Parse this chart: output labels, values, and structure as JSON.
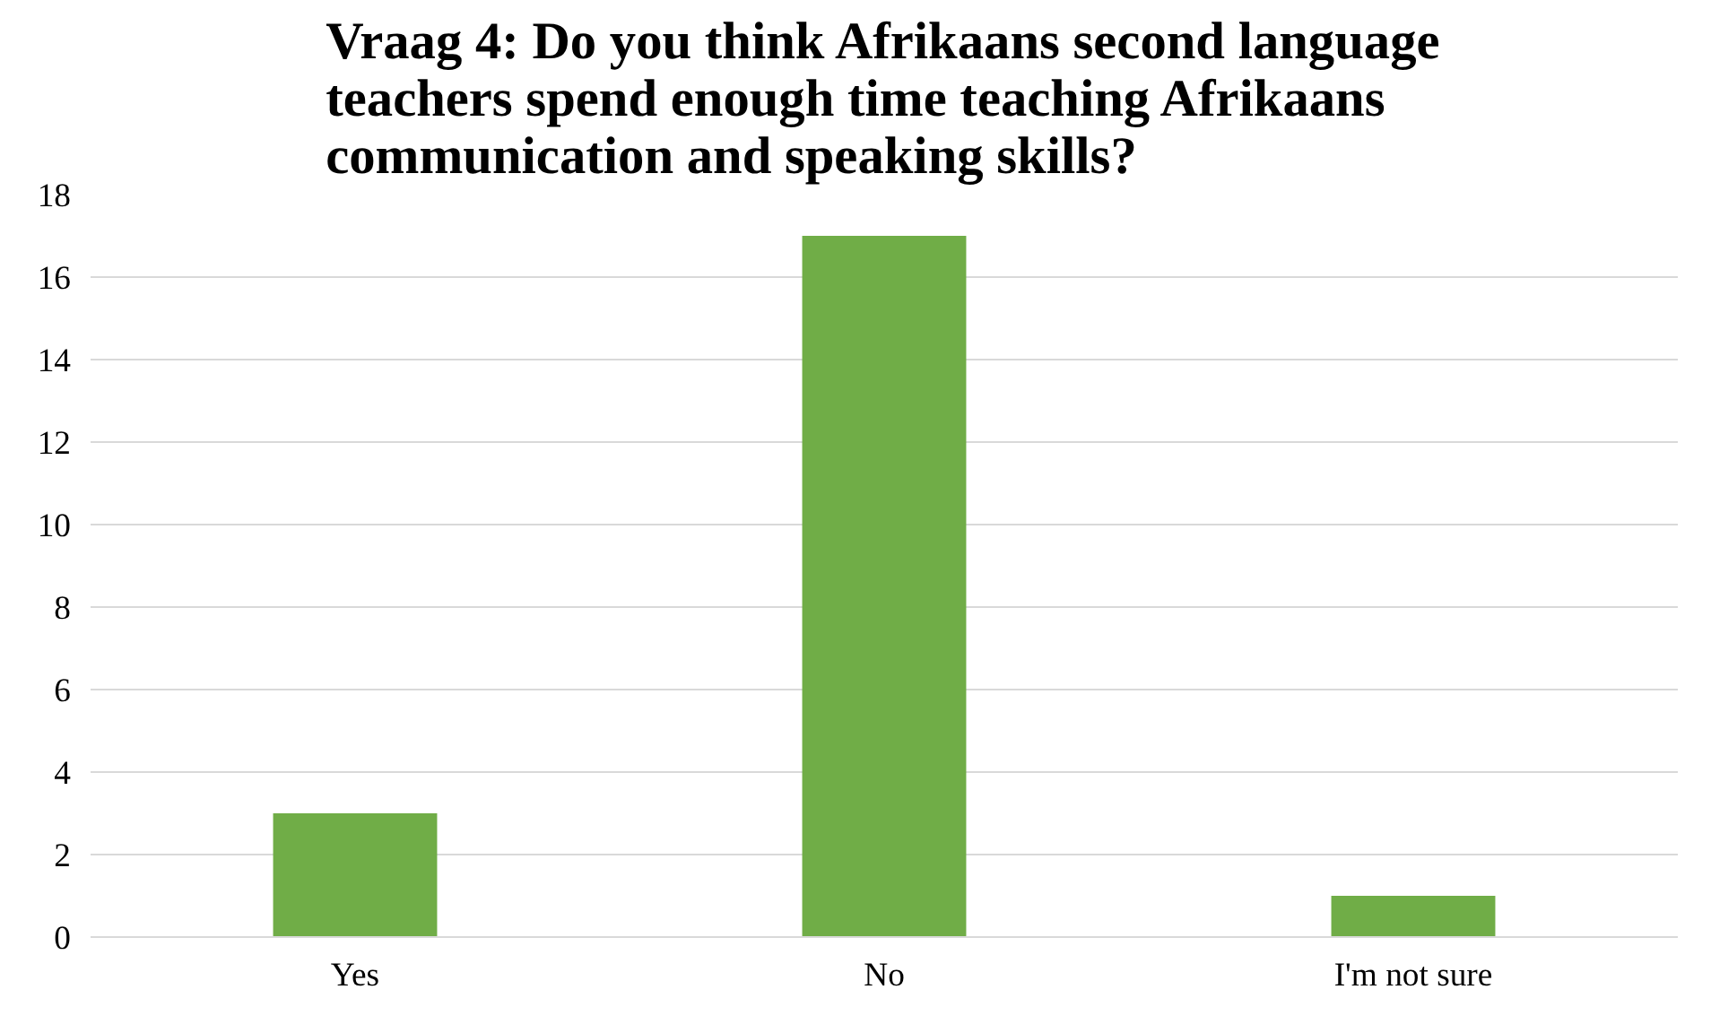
{
  "chart_data": {
    "type": "bar",
    "title": "Vraag 4: Do you think Afrikaans second language teachers spend enough time teaching Afrikaans communication and speaking skills?",
    "categories": [
      "Yes",
      "No",
      "I'm not sure"
    ],
    "values": [
      3,
      17,
      1
    ],
    "color": "#70ad47",
    "ylim": [
      0,
      18
    ],
    "yticks": [
      0,
      2,
      4,
      6,
      8,
      10,
      12,
      14,
      16,
      18
    ],
    "grid": "y"
  }
}
